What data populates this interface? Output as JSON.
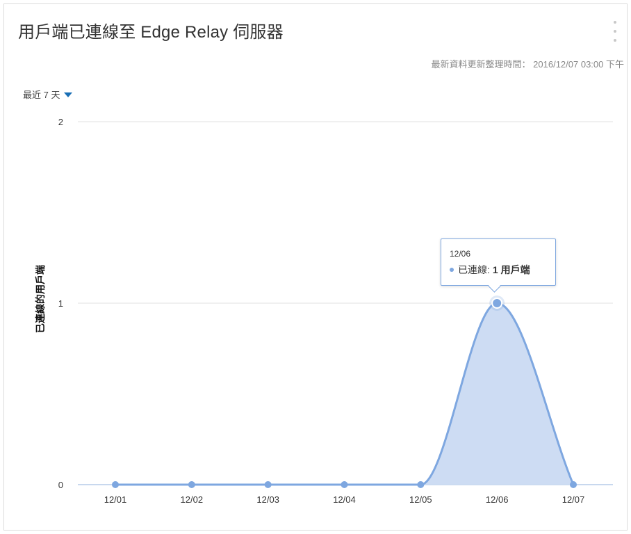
{
  "header": {
    "title": "用戶端已連線至 Edge Relay 伺服器",
    "updated_label": "最新資料更新整理時間：",
    "updated_value": "2016/12/07 03:00 下午"
  },
  "filter": {
    "range_label": "最近 7 天"
  },
  "icons": {
    "menu": "more-vertical-icon",
    "range_caret": "caret-down-icon"
  },
  "colors": {
    "series": "#7ea7e0",
    "area": "#cddcf3",
    "grid": "#e0e0e0",
    "axis": "#b5cbe8"
  },
  "chart_data": {
    "type": "area",
    "categories": [
      "12/01",
      "12/02",
      "12/03",
      "12/04",
      "12/05",
      "12/06",
      "12/07"
    ],
    "series": [
      {
        "name": "已連線",
        "values": [
          0,
          0,
          0,
          0,
          0,
          1,
          0
        ]
      }
    ],
    "ylabel": "已連線的用戶端",
    "yticks": [
      "0",
      "1",
      "2"
    ],
    "ylim": [
      0,
      2
    ],
    "grid": true
  },
  "tooltip": {
    "date": "12/06",
    "series_label": "已連線:",
    "value_text": "1 用戶端"
  }
}
